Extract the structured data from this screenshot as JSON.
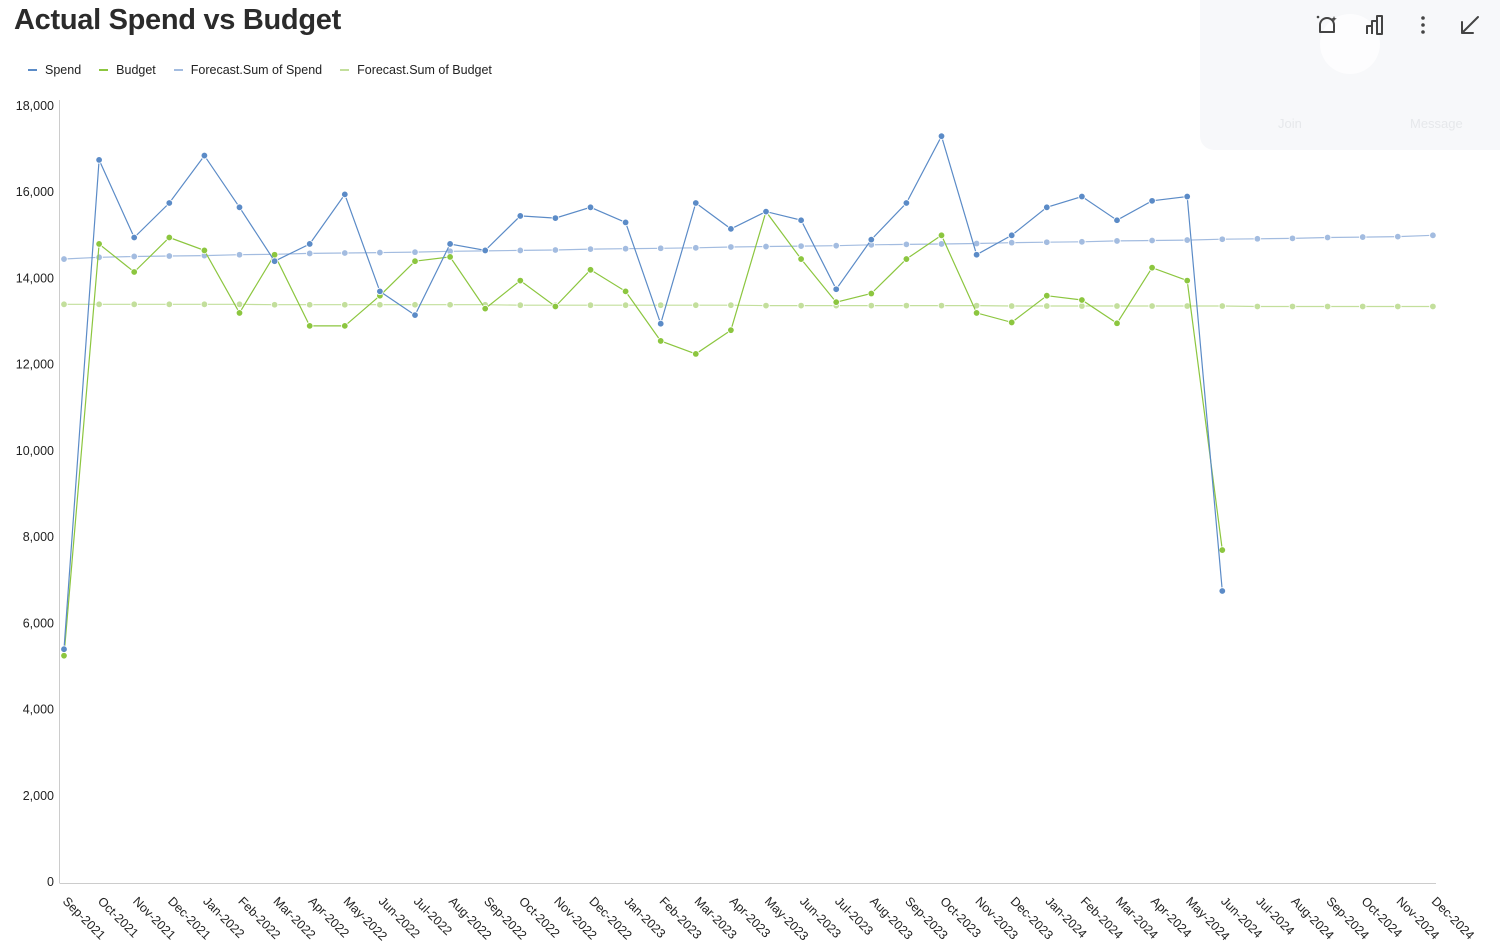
{
  "header": {
    "title": "Actual Spend vs Budget"
  },
  "toolbar": {
    "icons": [
      "ai-insight-icon",
      "bar-chart-icon",
      "more-vertical-icon",
      "collapse-icon"
    ],
    "ghost": {
      "join_label": "Join",
      "message_label": "Message"
    }
  },
  "colors": {
    "spend": "#5b8bc7",
    "budget": "#8cc63f",
    "forecast_spend": "#a3bce0",
    "forecast_budget": "#c3df9c",
    "axis": "#cccccc"
  },
  "chart_data": {
    "type": "line",
    "title": "Actual Spend vs Budget",
    "xlabel": "",
    "ylabel": "",
    "ylim": [
      0,
      18000
    ],
    "yticks": [
      0,
      2000,
      4000,
      6000,
      8000,
      10000,
      12000,
      14000,
      16000,
      18000
    ],
    "ytick_labels": [
      "0",
      "2,000",
      "4,000",
      "6,000",
      "8,000",
      "10,000",
      "12,000",
      "14,000",
      "16,000",
      "18,000"
    ],
    "grid": false,
    "legend_position": "top-left",
    "categories": [
      "Sep-2021",
      "Oct-2021",
      "Nov-2021",
      "Dec-2021",
      "Jan-2022",
      "Feb-2022",
      "Mar-2022",
      "Apr-2022",
      "May-2022",
      "Jun-2022",
      "Jul-2022",
      "Aug-2022",
      "Sep-2022",
      "Oct-2022",
      "Nov-2022",
      "Dec-2022",
      "Jan-2023",
      "Feb-2023",
      "Mar-2023",
      "Apr-2023",
      "May-2023",
      "Jun-2023",
      "Jul-2023",
      "Aug-2023",
      "Sep-2023",
      "Oct-2023",
      "Nov-2023",
      "Dec-2023",
      "Jan-2024",
      "Feb-2024",
      "Mar-2024",
      "Apr-2024",
      "May-2024",
      "Jun-2024",
      "Jul-2024",
      "Aug-2024",
      "Sep-2024",
      "Oct-2024",
      "Nov-2024",
      "Dec-2024"
    ],
    "series": [
      {
        "name": "Spend",
        "color_key": "spend",
        "values": [
          5400,
          16750,
          14950,
          15750,
          16850,
          15650,
          14400,
          14800,
          15950,
          13700,
          13150,
          14800,
          14650,
          15450,
          15400,
          15650,
          15300,
          12950,
          15750,
          15150,
          15550,
          15350,
          13750,
          14900,
          15750,
          17300,
          14550,
          15000,
          15650,
          15900,
          15350,
          15800,
          15900,
          6750,
          null,
          null,
          null,
          null,
          null,
          null
        ]
      },
      {
        "name": "Budget",
        "color_key": "budget",
        "values": [
          5250,
          14800,
          14150,
          14950,
          14650,
          13200,
          14550,
          12900,
          12900,
          13600,
          14400,
          14500,
          13300,
          13950,
          13350,
          14200,
          13700,
          12550,
          12250,
          12800,
          15550,
          14450,
          13450,
          13650,
          14450,
          15000,
          13200,
          12980,
          13600,
          13500,
          12960,
          14250,
          13950,
          7700,
          null,
          null,
          null,
          null,
          null,
          null
        ]
      },
      {
        "name": "Forecast.Sum of Spend",
        "color_key": "forecast_spend",
        "values": [
          14450,
          14490,
          14510,
          14520,
          14530,
          14550,
          14560,
          14580,
          14590,
          14600,
          14610,
          14630,
          14640,
          14650,
          14660,
          14680,
          14690,
          14700,
          14710,
          14730,
          14740,
          14750,
          14760,
          14780,
          14790,
          14800,
          14810,
          14830,
          14840,
          14850,
          14870,
          14880,
          14890,
          14910,
          14920,
          14930,
          14950,
          14960,
          14970,
          15000
        ]
      },
      {
        "name": "Forecast.Sum of Budget",
        "color_key": "forecast_budget",
        "values": [
          13400,
          13400,
          13400,
          13400,
          13400,
          13400,
          13390,
          13390,
          13390,
          13390,
          13390,
          13390,
          13390,
          13380,
          13380,
          13380,
          13380,
          13380,
          13380,
          13380,
          13370,
          13370,
          13370,
          13370,
          13370,
          13370,
          13370,
          13360,
          13360,
          13360,
          13360,
          13360,
          13360,
          13360,
          13350,
          13350,
          13350,
          13350,
          13350,
          13350
        ]
      }
    ]
  }
}
